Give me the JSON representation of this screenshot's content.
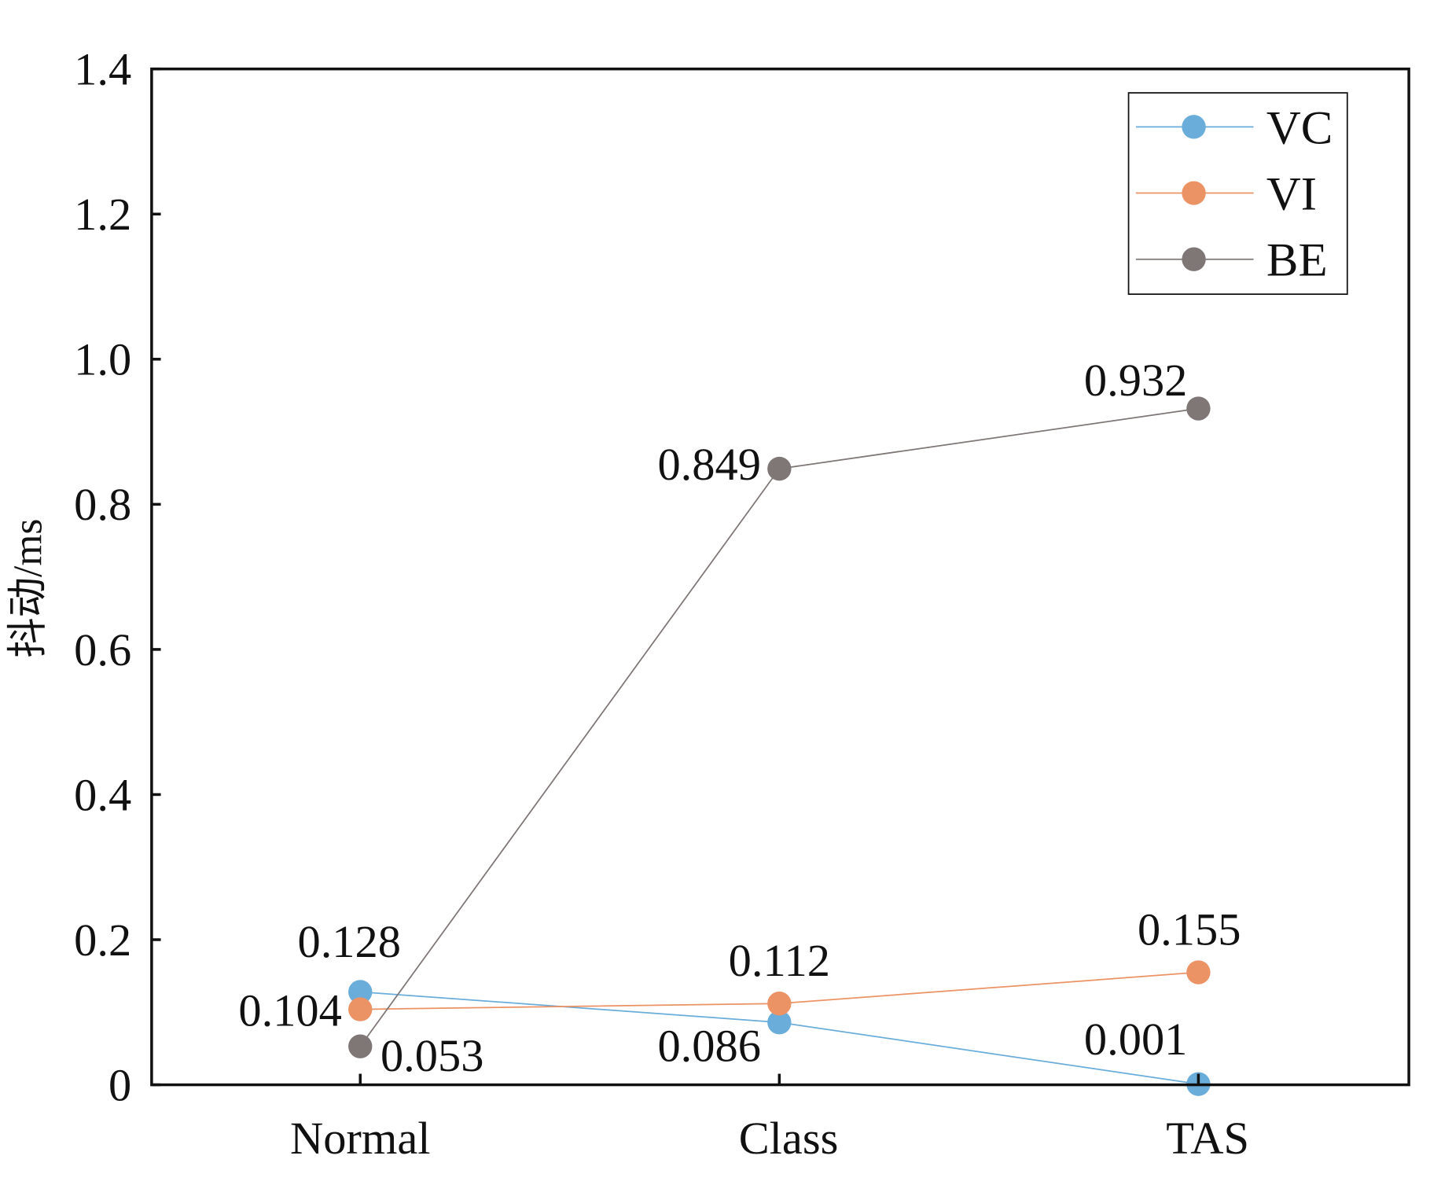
{
  "chart_data": {
    "type": "line",
    "title": "",
    "xlabel": "",
    "ylabel": "抖动/ms",
    "ylim": [
      0,
      1.4
    ],
    "yticks": [
      "0",
      "0.2",
      "0.4",
      "0.6",
      "0.8",
      "1.0",
      "1.2",
      "1.4"
    ],
    "ytick_values": [
      0,
      0.2,
      0.4,
      0.6,
      0.8,
      1.0,
      1.2,
      1.4
    ],
    "categories": [
      "Normal",
      "Class",
      "TAS"
    ],
    "grid": false,
    "legend_position": "top-right",
    "series": [
      {
        "name": "VC",
        "color": "#6aaddb",
        "values": [
          0.128,
          0.086,
          0.001
        ],
        "labels": [
          "0.128",
          "0.086",
          "0.001"
        ]
      },
      {
        "name": "VI",
        "color": "#ec9366",
        "values": [
          0.104,
          0.112,
          0.155
        ],
        "labels": [
          "0.104",
          "0.112",
          "0.155"
        ]
      },
      {
        "name": "BE",
        "color": "#7f7676",
        "values": [
          0.053,
          0.849,
          0.932
        ],
        "labels": [
          "0.053",
          "0.849",
          "0.932"
        ]
      }
    ]
  }
}
